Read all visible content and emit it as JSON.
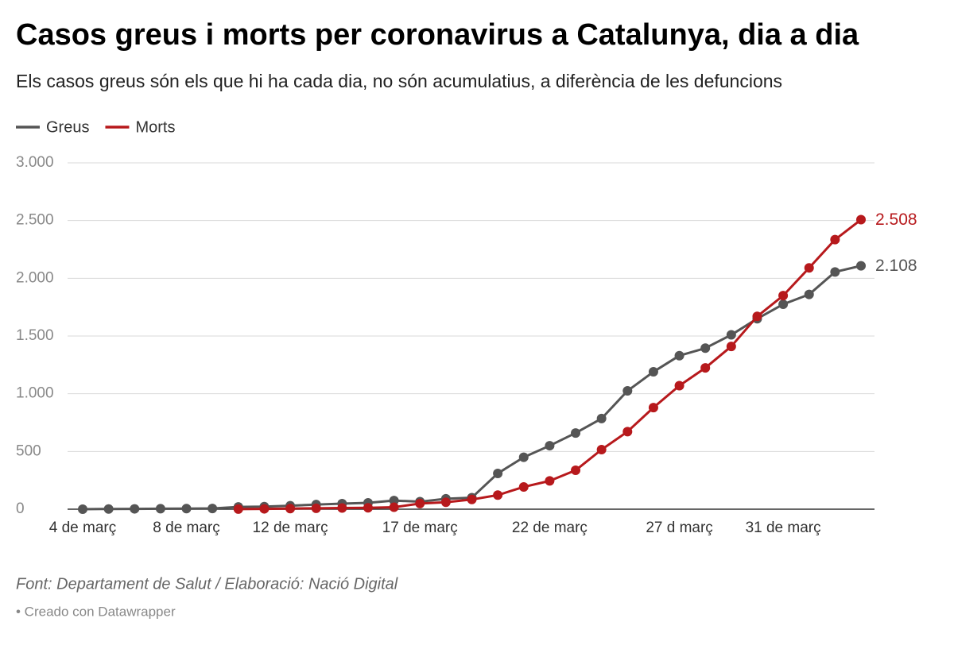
{
  "chart_data": {
    "type": "line",
    "title": "Casos greus i morts per coronavirus a Catalunya, dia a dia",
    "subtitle": "Els casos greus són els que hi ha cada dia, no són acumulatius, a diferència de les defuncions",
    "categories": [
      "4 de març",
      null,
      null,
      null,
      "8 de març",
      null,
      null,
      null,
      "12 de març",
      null,
      null,
      null,
      null,
      "17 de març",
      null,
      null,
      null,
      null,
      "22 de març",
      null,
      null,
      null,
      null,
      "27 d març",
      null,
      null,
      null,
      "31 de març",
      null,
      null,
      null
    ],
    "series": [
      {
        "name": "Greus",
        "color": "#555555",
        "values": [
          0,
          2,
          3,
          4,
          5,
          6,
          20,
          22,
          30,
          40,
          48,
          55,
          75,
          65,
          90,
          100,
          310,
          450,
          550,
          660,
          785,
          1025,
          1190,
          1330,
          1395,
          1510,
          1650,
          1775,
          1860,
          2055,
          2108
        ],
        "value_labels": [
          null,
          null,
          null,
          null,
          null,
          null,
          null,
          null,
          null,
          null,
          null,
          null,
          null,
          null,
          null,
          null,
          null,
          null,
          null,
          null,
          null,
          null,
          null,
          null,
          null,
          null,
          null,
          null,
          null,
          null,
          "2.108"
        ]
      },
      {
        "name": "Morts",
        "color": "#b7191c",
        "values": [
          null,
          null,
          null,
          null,
          null,
          null,
          1,
          3,
          5,
          8,
          10,
          12,
          17,
          49,
          60,
          84,
          122,
          193,
          245,
          337,
          516,
          672,
          880,
          1070,
          1224,
          1410,
          1670,
          1850,
          2090,
          2335,
          2508
        ],
        "value_labels": [
          null,
          null,
          null,
          null,
          null,
          null,
          null,
          null,
          null,
          null,
          null,
          null,
          null,
          null,
          null,
          null,
          null,
          null,
          null,
          null,
          null,
          null,
          null,
          null,
          null,
          null,
          null,
          null,
          null,
          null,
          "2.508"
        ]
      }
    ],
    "ylim": [
      0,
      3000
    ],
    "yticks": [
      0,
      500,
      {
        "value": 1000,
        "label": "1.000"
      },
      {
        "value": 1500,
        "label": "1.500"
      },
      {
        "value": 2000,
        "label": "2.000"
      },
      {
        "value": 2500,
        "label": "2.500"
      },
      {
        "value": 3000,
        "label": "3.000"
      }
    ],
    "grid": true,
    "legend": "top-left",
    "source": "Font: Departament de Salut / Elaboració: Nació Digital",
    "credit": "• Creado con Datawrapper"
  }
}
